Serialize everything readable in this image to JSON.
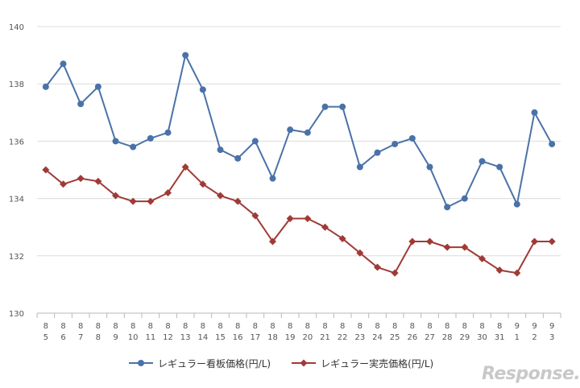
{
  "chart_data": {
    "type": "line",
    "categories": [
      [
        "8",
        "5"
      ],
      [
        "8",
        "6"
      ],
      [
        "8",
        "7"
      ],
      [
        "8",
        "8"
      ],
      [
        "8",
        "9"
      ],
      [
        "8",
        "10"
      ],
      [
        "8",
        "11"
      ],
      [
        "8",
        "12"
      ],
      [
        "8",
        "13"
      ],
      [
        "8",
        "14"
      ],
      [
        "8",
        "15"
      ],
      [
        "8",
        "16"
      ],
      [
        "8",
        "17"
      ],
      [
        "8",
        "18"
      ],
      [
        "8",
        "19"
      ],
      [
        "8",
        "20"
      ],
      [
        "8",
        "21"
      ],
      [
        "8",
        "22"
      ],
      [
        "8",
        "23"
      ],
      [
        "8",
        "24"
      ],
      [
        "8",
        "25"
      ],
      [
        "8",
        "26"
      ],
      [
        "8",
        "27"
      ],
      [
        "8",
        "28"
      ],
      [
        "8",
        "29"
      ],
      [
        "8",
        "30"
      ],
      [
        "8",
        "31"
      ],
      [
        "9",
        "1"
      ],
      [
        "9",
        "2"
      ],
      [
        "9",
        "3"
      ]
    ],
    "series": [
      {
        "name": "レギュラー看板価格(円/L)",
        "color": "#4a72a8",
        "marker": "circle",
        "values": [
          137.9,
          138.7,
          137.3,
          137.9,
          136.0,
          135.8,
          136.1,
          136.3,
          139.0,
          137.8,
          135.7,
          135.4,
          136.0,
          134.7,
          136.4,
          136.3,
          137.2,
          137.2,
          135.1,
          135.6,
          135.9,
          136.1,
          135.1,
          133.7,
          134.0,
          135.3,
          135.1,
          133.8,
          137.0,
          135.9
        ]
      },
      {
        "name": "レギュラー実売価格(円/L)",
        "color": "#a03a36",
        "marker": "diamond",
        "values": [
          135.0,
          134.5,
          134.7,
          134.6,
          134.1,
          133.9,
          133.9,
          134.2,
          135.1,
          134.5,
          134.1,
          133.9,
          133.4,
          132.5,
          133.3,
          133.3,
          133.0,
          132.6,
          132.1,
          131.6,
          131.4,
          132.5,
          132.5,
          132.3,
          132.3,
          131.9,
          131.5,
          131.4,
          132.5,
          132.5
        ]
      }
    ],
    "ylim": [
      130,
      140
    ],
    "yticks": [
      130,
      132,
      134,
      136,
      138,
      140
    ],
    "grid": true,
    "legend_position": "bottom",
    "watermark": "Response."
  }
}
